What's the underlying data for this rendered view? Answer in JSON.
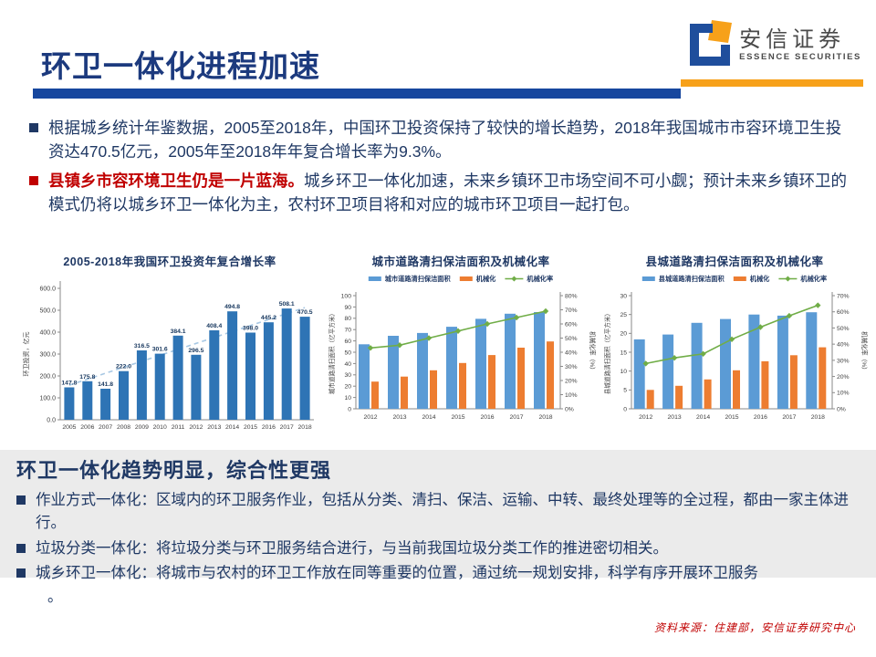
{
  "slide": {
    "title": "环卫一体化进程加速",
    "logo": {
      "name": "安信证券",
      "subtitle": "ESSENCE SECURITIES"
    },
    "intro_bullets": [
      {
        "text": "根据城乡统计年鉴数据，2005至2018年，中国环卫投资保持了较快的增长趋势，2018年我国城市市容环境卫生投资达470.5亿元，2005年至2018年年复合增长率为9.3%。"
      },
      {
        "lead": "县镇乡市容环境卫生仍是一片蓝海。",
        "text": "城乡环卫一体化加速，未来乡镇环卫市场空间不可小觑；预计未来乡镇环卫的模式仍将以城乡环卫一体化为主，农村环卫项目将和对应的城市环卫项目一起打包。"
      }
    ],
    "panel": {
      "heading": "环卫一体化趋势明显，综合性更强",
      "items": [
        "作业方式一体化：区域内的环卫服务作业，包括从分类、清扫、保洁、运输、中转、最终处理等的全过程，都由一家主体进行。",
        "垃圾分类一体化：将垃圾分类与环卫服务结合进行，与当前我国垃圾分类工作的推进密切相关。",
        "城乡环卫一体化：将城市与农村的环卫工作放在同等重要的位置，通过统一规划安排，科学有序开展环卫服务"
      ],
      "trailing": "。"
    },
    "footer": "资料来源：住建部，安信证券研究中心"
  },
  "colors": {
    "title_navy": "#1C3A7E",
    "body_navy": "#1F3864",
    "accent_red": "#C00000",
    "rule_blue": "#17479E",
    "brand_orange": "#F7A11A",
    "bar_steel_blue": "#2E74B5",
    "combo_blue": "#5B9BD5",
    "combo_orange": "#ED7D31",
    "line_green": "#70AD47",
    "trend_dash_blue": "#A8C8E4",
    "panel_gray": "#EBEBEB"
  },
  "chart_data": [
    {
      "type": "bar",
      "title": "2005-2018年我国环卫投资年复合增长率",
      "categories": [
        "2005",
        "2006",
        "2007",
        "2008",
        "2009",
        "2010",
        "2011",
        "2012",
        "2013",
        "2014",
        "2015",
        "2016",
        "2017",
        "2018"
      ],
      "values": [
        147.8,
        175.8,
        141.8,
        222.0,
        316.5,
        301.6,
        384.1,
        296.5,
        408.4,
        494.8,
        398.0,
        445.2,
        508.1,
        470.5
      ],
      "ylabel": "环卫投资，亿元",
      "ylim": [
        0,
        600
      ],
      "ytick_step": 100,
      "bar_color": "#2E74B5",
      "trendline": {
        "style": "dashed",
        "start": 158,
        "end": 512,
        "color": "#A8C8E4"
      },
      "grid": false,
      "legend": "none"
    },
    {
      "type": "combo",
      "title": "城市道路清扫保洁面积及机械化率",
      "categories": [
        "2012",
        "2013",
        "2014",
        "2015",
        "2016",
        "2017",
        "2018"
      ],
      "series": [
        {
          "name": "城市道路清扫保洁面积",
          "type": "bar",
          "axis": "left",
          "color": "#5B9BD5",
          "values": [
            57,
            64.5,
            67,
            72.5,
            79.5,
            84,
            85.5
          ]
        },
        {
          "name": "机械化",
          "type": "bar",
          "axis": "left",
          "color": "#ED7D31",
          "values": [
            24,
            28.5,
            34,
            40.5,
            47.5,
            54,
            59.5
          ]
        },
        {
          "name": "机械化率",
          "type": "line",
          "axis": "right",
          "color": "#70AD47",
          "values": [
            43,
            45,
            50,
            55,
            60,
            64.5,
            69
          ]
        }
      ],
      "left_axis": {
        "label": "城市道路清扫面积（亿平方米）",
        "min": 0,
        "max": 100,
        "step": 10,
        "suffix": ""
      },
      "right_axis": {
        "label": "机械化率（%）",
        "min": 0,
        "max": 80,
        "step": 10,
        "suffix": "%"
      },
      "grid": false,
      "legend": "top"
    },
    {
      "type": "combo",
      "title": "县城道路清扫保洁面积及机械化率",
      "categories": [
        "2012",
        "2013",
        "2014",
        "2015",
        "2016",
        "2017",
        "2018"
      ],
      "series": [
        {
          "name": "县城道路清扫保洁面积",
          "type": "bar",
          "axis": "left",
          "color": "#5B9BD5",
          "values": [
            18.4,
            19.7,
            22.8,
            23.8,
            25.0,
            24.7,
            25.6
          ]
        },
        {
          "name": "机械化",
          "type": "bar",
          "axis": "left",
          "color": "#ED7D31",
          "values": [
            5.0,
            6.1,
            7.8,
            10.2,
            12.6,
            14.2,
            16.3
          ]
        },
        {
          "name": "机械化率",
          "type": "line",
          "axis": "right",
          "color": "#70AD47",
          "values": [
            28,
            31.5,
            34,
            43,
            50.5,
            57.5,
            64
          ]
        }
      ],
      "left_axis": {
        "label": "县城道路清扫面积（亿平方米）",
        "min": 0,
        "max": 30,
        "step": 5,
        "suffix": ""
      },
      "right_axis": {
        "label": "机械化率（%）",
        "min": 0,
        "max": 70,
        "step": 10,
        "suffix": "%"
      },
      "grid": false,
      "legend": "top"
    }
  ]
}
